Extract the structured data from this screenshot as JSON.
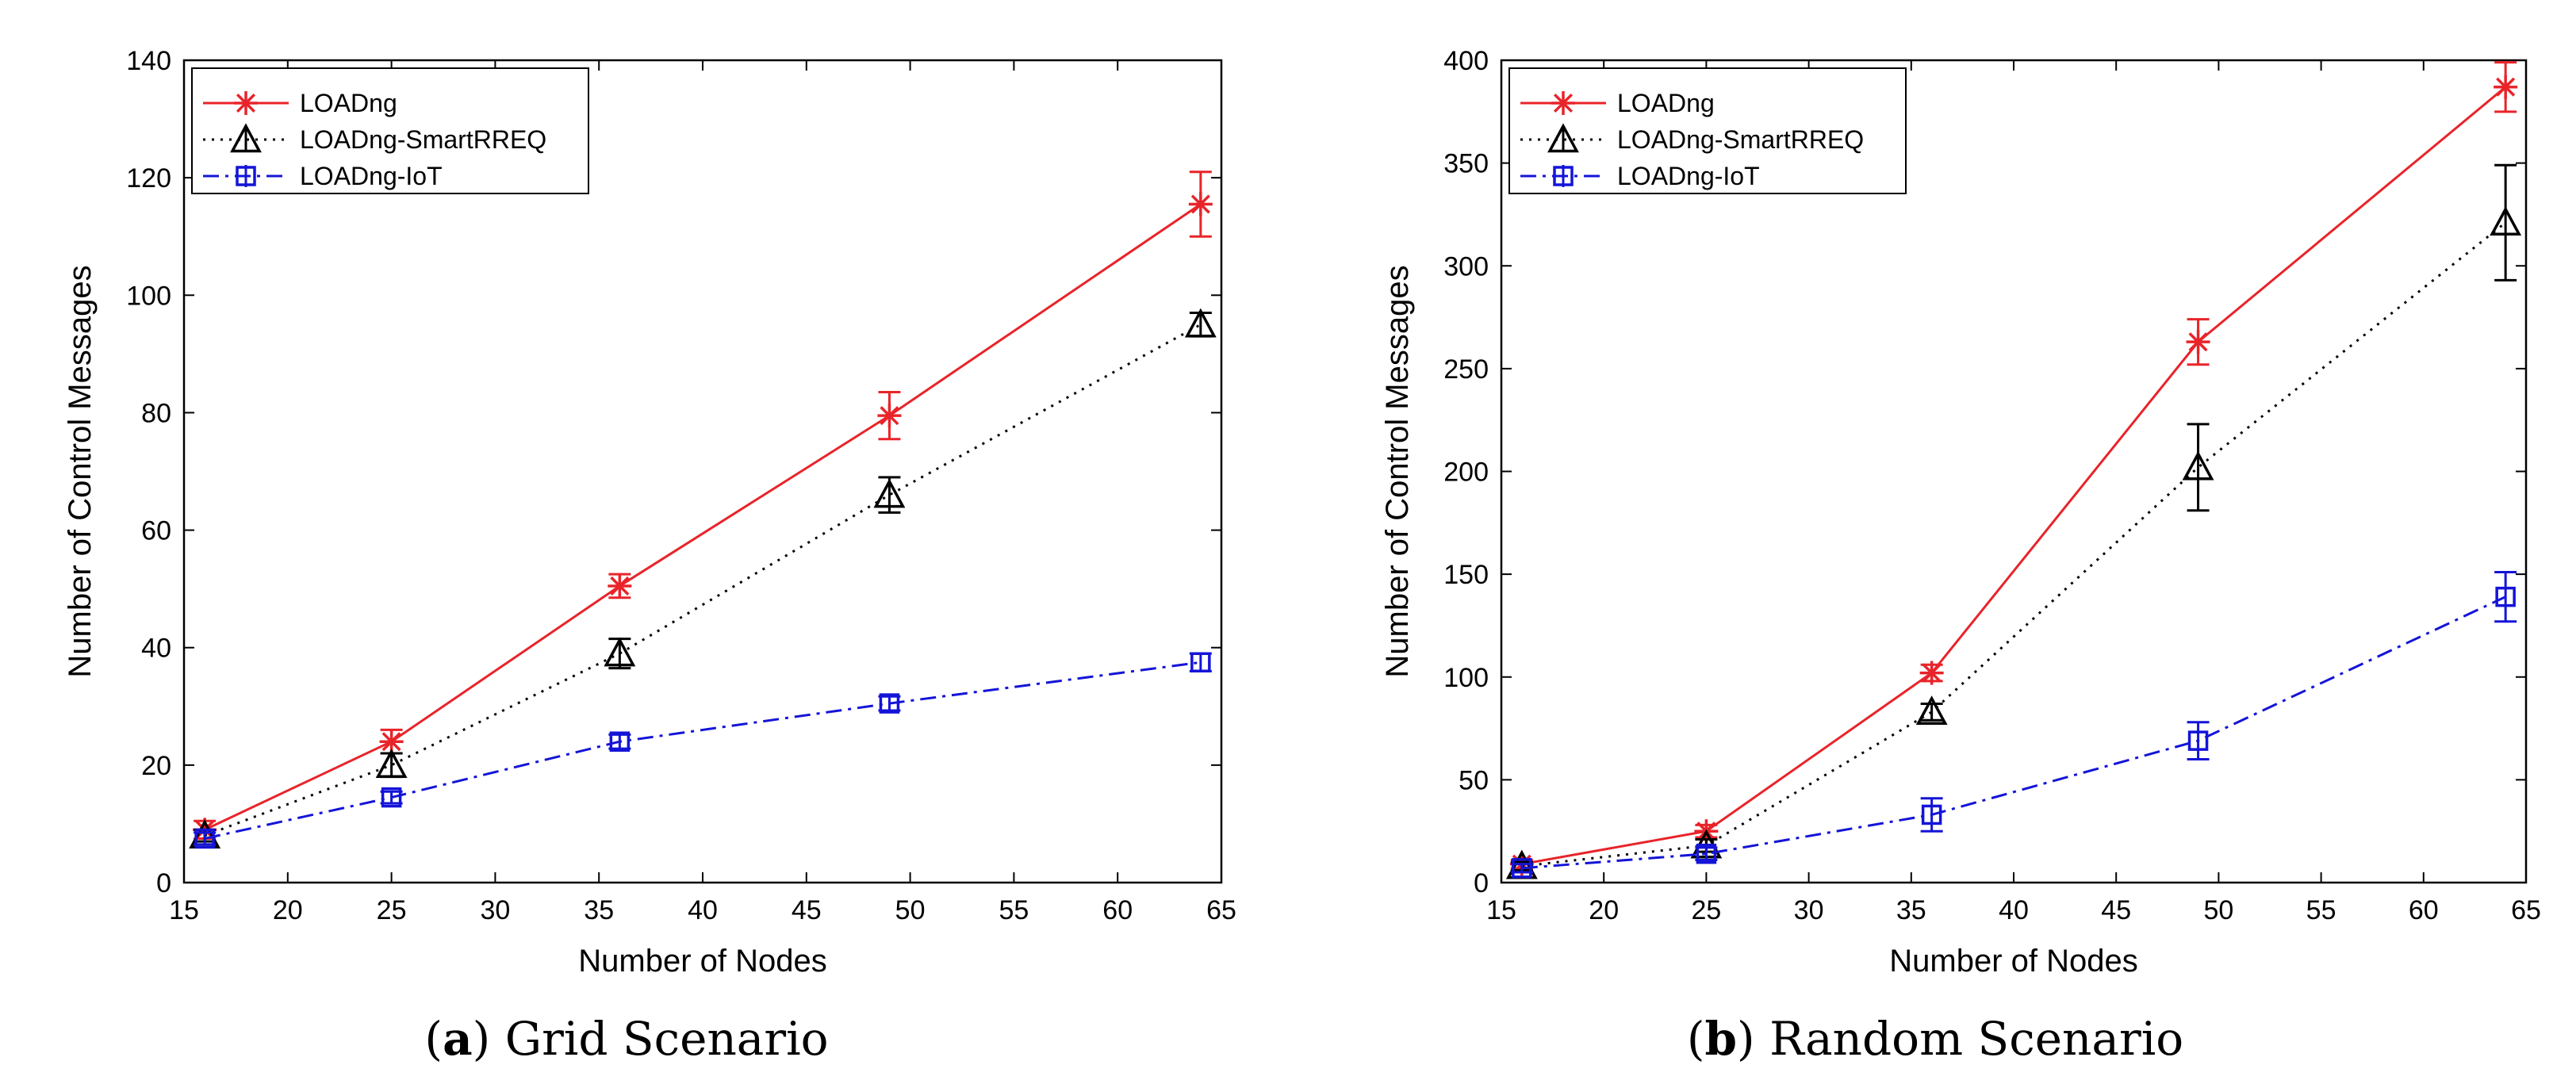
{
  "chart_data": [
    {
      "type": "line",
      "panel_letter": "a",
      "caption": "Grid Scenario",
      "xlabel": "Number of Nodes",
      "ylabel": "Number of Control Messages",
      "xlim": [
        15,
        65
      ],
      "ylim": [
        0,
        140
      ],
      "xticks": [
        15,
        20,
        25,
        30,
        35,
        40,
        45,
        50,
        55,
        60,
        65
      ],
      "yticks": [
        0,
        20,
        40,
        60,
        80,
        100,
        120,
        140
      ],
      "legend_position": "top-left",
      "grid": false,
      "x": [
        16,
        25,
        36,
        49,
        64
      ],
      "series": [
        {
          "name": "LOADng",
          "color": "#e8242a",
          "line_style": "solid",
          "marker": "asterisk",
          "values": [
            9,
            24,
            50.5,
            79.5,
            115.5
          ],
          "errors": [
            1.5,
            2,
            2,
            4,
            5.5
          ]
        },
        {
          "name": "LOADng-SmartRREQ",
          "color": "#000000",
          "line_style": "dotted",
          "marker": "triangle",
          "values": [
            8,
            20,
            39,
            66,
            95
          ],
          "errors": [
            1,
            2,
            2.5,
            3,
            2
          ]
        },
        {
          "name": "LOADng-IoT",
          "color": "#1414d8",
          "line_style": "dashdot",
          "marker": "square",
          "values": [
            7.5,
            14.5,
            24,
            30.5,
            37.5
          ],
          "errors": [
            1,
            1,
            1.2,
            1.2,
            1.5
          ]
        }
      ]
    },
    {
      "type": "line",
      "panel_letter": "b",
      "caption": "Random Scenario",
      "xlabel": "Number of Nodes",
      "ylabel": "Number of Control Messages",
      "xlim": [
        15,
        65
      ],
      "ylim": [
        0,
        400
      ],
      "xticks": [
        15,
        20,
        25,
        30,
        35,
        40,
        45,
        50,
        55,
        60,
        65
      ],
      "yticks": [
        0,
        50,
        100,
        150,
        200,
        250,
        300,
        350,
        400
      ],
      "legend_position": "top-left",
      "grid": false,
      "x": [
        16,
        25,
        36,
        49,
        64
      ],
      "series": [
        {
          "name": "LOADng",
          "color": "#e8242a",
          "line_style": "solid",
          "marker": "asterisk",
          "values": [
            9,
            25,
            102,
            263,
            387
          ],
          "errors": [
            2,
            3,
            4,
            11,
            12
          ]
        },
        {
          "name": "LOADng-SmartRREQ",
          "color": "#000000",
          "line_style": "dotted",
          "marker": "triangle",
          "values": [
            8,
            18,
            83,
            202,
            321
          ],
          "errors": [
            2,
            3,
            4,
            21,
            28
          ]
        },
        {
          "name": "LOADng-IoT",
          "color": "#1414d8",
          "line_style": "dashdot",
          "marker": "square",
          "values": [
            7,
            14,
            33,
            69,
            139
          ],
          "errors": [
            2,
            3,
            8,
            9,
            12
          ]
        }
      ]
    }
  ]
}
